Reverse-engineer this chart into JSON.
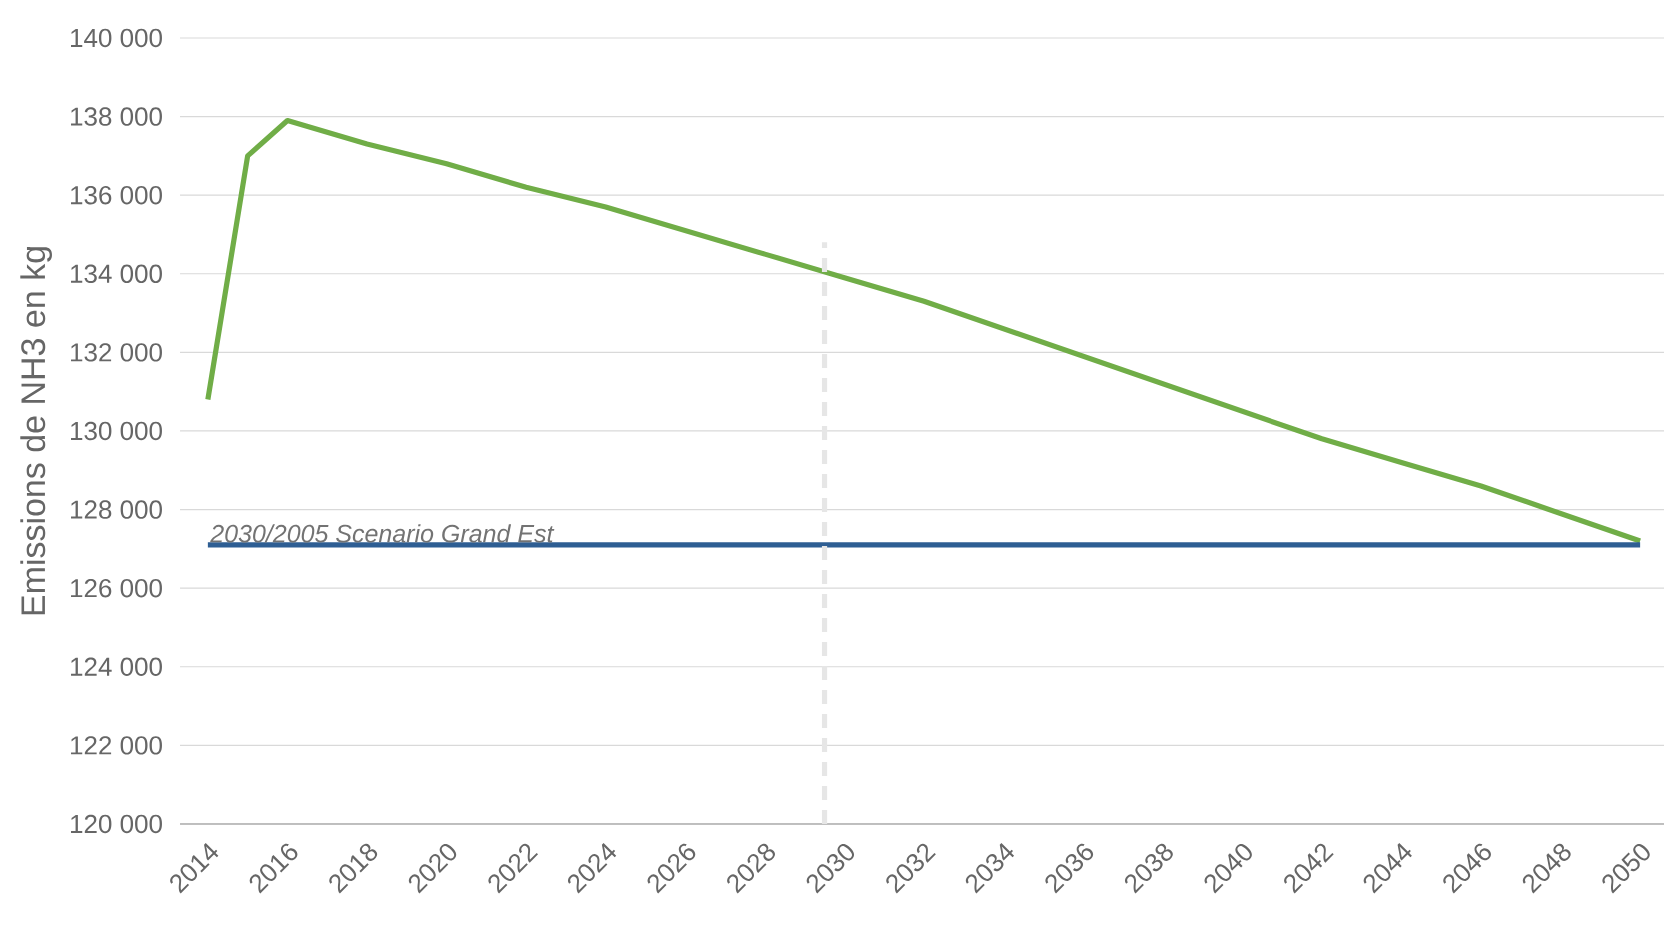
{
  "chart_data": {
    "type": "line",
    "ylabel": "Emissions de NH3 en kg",
    "xlim": [
      2013.3,
      2050.6
    ],
    "xticks": [
      2014,
      2016,
      2018,
      2020,
      2022,
      2024,
      2026,
      2028,
      2030,
      2032,
      2034,
      2036,
      2038,
      2040,
      2042,
      2044,
      2046,
      2048,
      2050
    ],
    "ylim": [
      120000,
      140000
    ],
    "yticks": [
      {
        "value": 120000,
        "label": "120 000"
      },
      {
        "value": 122000,
        "label": "122 000"
      },
      {
        "value": 124000,
        "label": "124 000"
      },
      {
        "value": 126000,
        "label": "126 000"
      },
      {
        "value": 128000,
        "label": "128 000"
      },
      {
        "value": 130000,
        "label": "130 000"
      },
      {
        "value": 132000,
        "label": "132 000"
      },
      {
        "value": 134000,
        "label": "134 000"
      },
      {
        "value": 136000,
        "label": "136 000"
      },
      {
        "value": 138000,
        "label": "138 000"
      },
      {
        "value": 140000,
        "label": "140 000"
      }
    ],
    "grid": "y",
    "marker": "none",
    "series": [
      {
        "color": "#70ad47",
        "x": [
          2014,
          2015,
          2016,
          2018,
          2020,
          2022,
          2024,
          2026,
          2028,
          2030,
          2032,
          2034,
          2036,
          2038,
          2040,
          2042,
          2044,
          2046,
          2048,
          2050
        ],
        "values": [
          130800,
          137000,
          137900,
          137300,
          136800,
          136200,
          135700,
          135100,
          134500,
          133900,
          133300,
          132600,
          131900,
          131200,
          130500,
          129800,
          129200,
          128600,
          127900,
          127200
        ]
      },
      {
        "color": "#2e5e93",
        "x": [
          2014,
          2050
        ],
        "values": [
          127100,
          127100
        ]
      },
      {
        "color": "#e6e6e6",
        "line_style": "dashed",
        "x": [
          2029.5,
          2029.5
        ],
        "values": [
          120000,
          134800
        ]
      }
    ],
    "annotations": [
      {
        "text": "2030/2005 Scenario Grand Est",
        "x": 2014,
        "y": 127100
      }
    ]
  }
}
